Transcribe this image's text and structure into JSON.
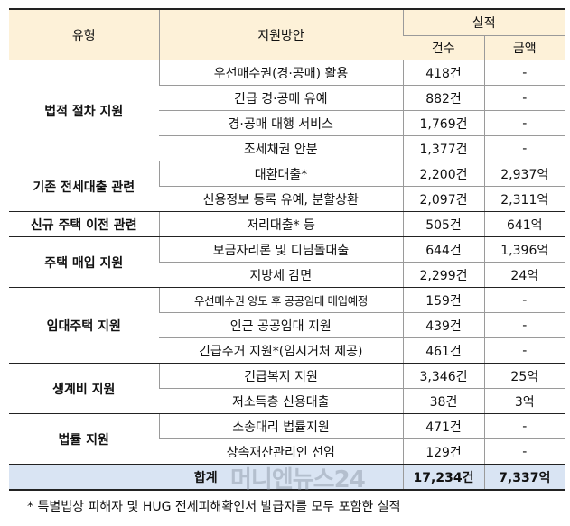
{
  "header": {
    "type": "유형",
    "plan": "지원방안",
    "result": "실적",
    "count": "건수",
    "amount": "금액"
  },
  "groups": [
    {
      "category": "법적 절차 지원",
      "rows": [
        {
          "plan": "우선매수권(경·공매) 활용",
          "count": "418건",
          "amount": "-"
        },
        {
          "plan": "긴급 경·공매 유예",
          "count": "882건",
          "amount": "-"
        },
        {
          "plan": "경·공매 대행 서비스",
          "count": "1,769건",
          "amount": "-"
        },
        {
          "plan": "조세채권 안분",
          "count": "1,377건",
          "amount": "-"
        }
      ]
    },
    {
      "category": "기존 전세대출 관련",
      "rows": [
        {
          "plan": "대환대출*",
          "count": "2,200건",
          "amount": "2,937억"
        },
        {
          "plan": "신용정보 등록 유예, 분할상환",
          "count": "2,097건",
          "amount": "2,311억"
        }
      ]
    },
    {
      "category": "신규 주택 이전 관련",
      "rows": [
        {
          "plan": "저리대출* 등",
          "count": "505건",
          "amount": "641억"
        }
      ]
    },
    {
      "category": "주택 매입 지원",
      "rows": [
        {
          "plan": "보금자리론 및 디딤돌대출",
          "count": "644건",
          "amount": "1,396억"
        },
        {
          "plan": "지방세 감면",
          "count": "2,299건",
          "amount": "24억"
        }
      ]
    },
    {
      "category": "임대주택 지원",
      "rows": [
        {
          "plan": "우선매수권 양도 후 공공임대 매입예정",
          "count": "159건",
          "amount": "-"
        },
        {
          "plan": "인근 공공임대 지원",
          "count": "439건",
          "amount": "-"
        },
        {
          "plan": "긴급주거 지원*(임시거처 제공)",
          "count": "461건",
          "amount": "-"
        }
      ]
    },
    {
      "category": "생계비 지원",
      "rows": [
        {
          "plan": "긴급복지 지원",
          "count": "3,346건",
          "amount": "25억"
        },
        {
          "plan": "저소득층 신용대출",
          "count": "38건",
          "amount": "3억"
        }
      ]
    },
    {
      "category": "법률 지원",
      "rows": [
        {
          "plan": "소송대리 법률지원",
          "count": "471건",
          "amount": "-"
        },
        {
          "plan": "상속재산관리인 선임",
          "count": "129건",
          "amount": "-"
        }
      ]
    }
  ],
  "total": {
    "label": "합계",
    "count": "17,234건",
    "amount": "7,337억"
  },
  "footnote": "* 특별법상 피해자 및 HUG 전세피해확인서 발급자를 모두 포함한 실적",
  "watermark": "머니엔뉴스24"
}
